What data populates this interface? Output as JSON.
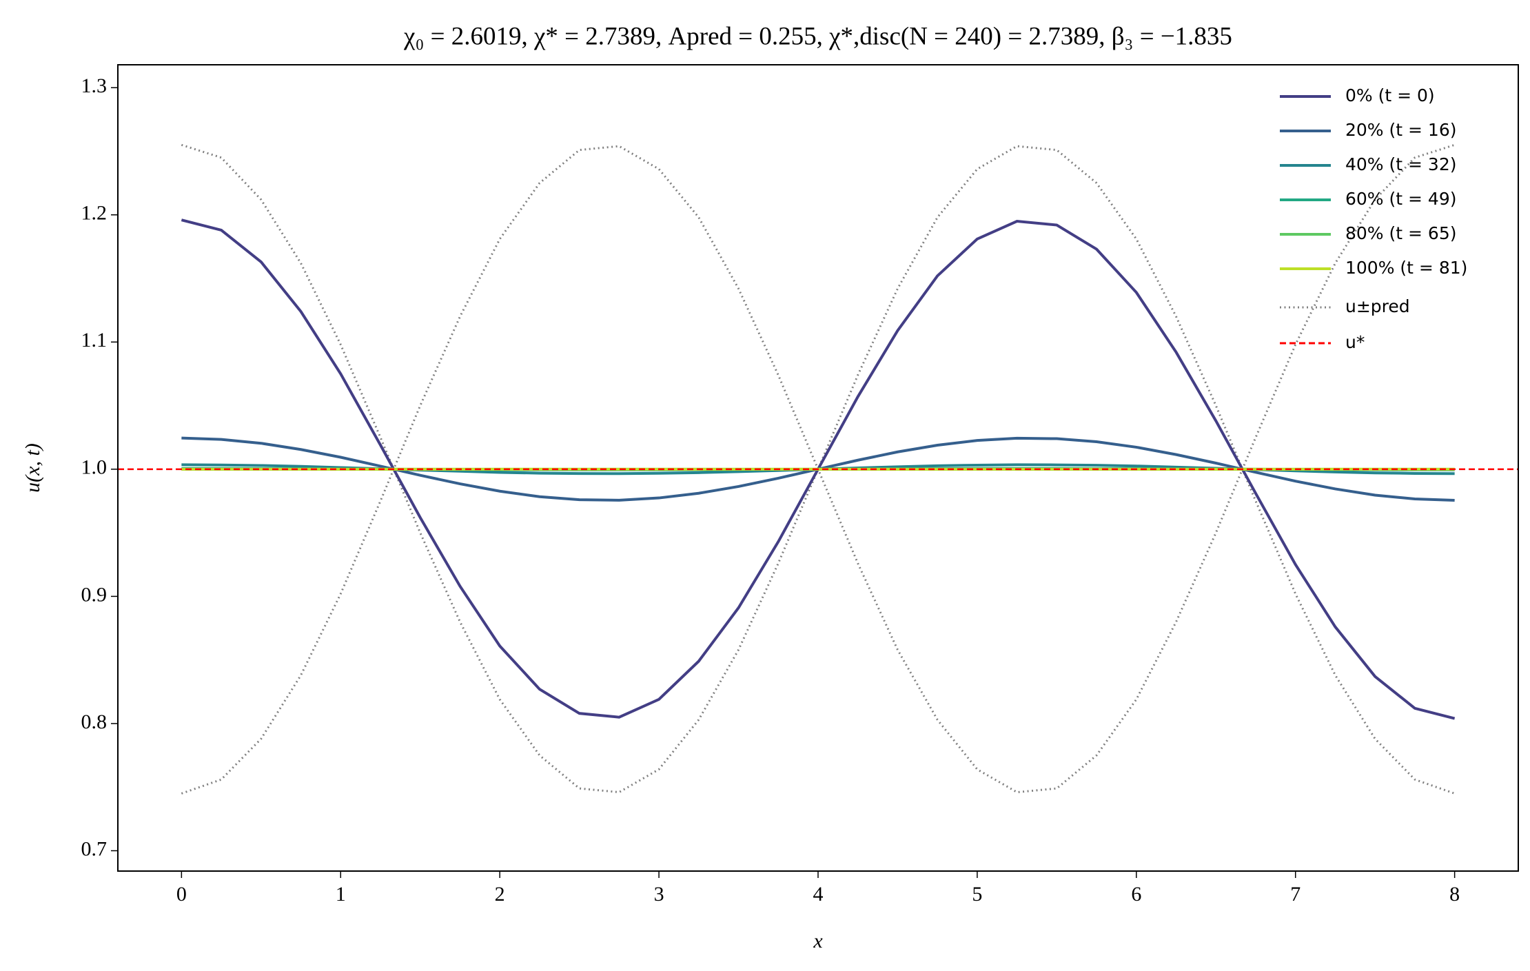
{
  "chart_data": {
    "type": "line",
    "title": "χ₀ = 2.6019,  χ* = 2.7389,  Apred = 0.255,  χ*,disc(N = 240) = 2.7389,  β₃ = −1.835",
    "x_label": "x",
    "y_label": "u(x, t)",
    "x": [
      0,
      0.25,
      0.5,
      0.75,
      1,
      1.25,
      1.5,
      1.75,
      2,
      2.25,
      2.5,
      2.75,
      3,
      3.25,
      3.5,
      3.75,
      4,
      4.25,
      4.5,
      4.75,
      5,
      5.25,
      5.5,
      5.75,
      6,
      6.25,
      6.5,
      6.75,
      7,
      7.25,
      7.5,
      7.75,
      8
    ],
    "series": [
      {
        "name": "0% (t = 0)",
        "color": "#433e85",
        "values": [
          1.196,
          1.188,
          1.163,
          1.124,
          1.075,
          1.019,
          0.962,
          0.908,
          0.861,
          0.827,
          0.808,
          0.805,
          0.819,
          0.849,
          0.891,
          0.943,
          1,
          1.057,
          1.109,
          1.152,
          1.181,
          1.195,
          1.192,
          1.173,
          1.139,
          1.092,
          1.038,
          0.981,
          0.925,
          0.876,
          0.837,
          0.812,
          0.804
        ]
      },
      {
        "name": "20% (t = 16)",
        "color": "#355f8d",
        "values": [
          1.0245,
          1.0234,
          1.0204,
          1.0155,
          1.0094,
          1.0024,
          0.9952,
          0.9885,
          0.9827,
          0.9784,
          0.976,
          0.9756,
          0.9774,
          0.9811,
          0.9864,
          0.9929,
          1,
          1.0071,
          1.0136,
          1.0189,
          1.0226,
          1.0244,
          1.024,
          1.0216,
          1.0173,
          1.0115,
          1.0048,
          0.9976,
          0.9906,
          0.9845,
          0.9796,
          0.9766,
          0.9755
        ]
      },
      {
        "name": "40% (t = 32)",
        "color": "#25858e",
        "values": [
          1.0035,
          1.0033,
          1.0029,
          1.0022,
          1.0013,
          1.0003,
          0.9993,
          0.9984,
          0.9975,
          0.9969,
          0.9966,
          0.9965,
          0.9968,
          0.9973,
          0.9981,
          0.999,
          1,
          1.001,
          1.0019,
          1.0027,
          1.0032,
          1.0035,
          1.0034,
          1.0031,
          1.0025,
          1.0016,
          1.0007,
          0.9997,
          0.9987,
          0.9978,
          0.9971,
          0.9967,
          0.9965
        ]
      },
      {
        "name": "60% (t = 49)",
        "color": "#22a884",
        "values": [
          1.0005,
          1.0005,
          1.0004,
          1.0003,
          1.0002,
          1,
          0.9999,
          0.9998,
          0.9996,
          0.9996,
          0.9995,
          0.9995,
          0.9995,
          0.9996,
          0.9997,
          0.9999,
          1,
          1.0001,
          1.0003,
          1.0004,
          1.0005,
          1.0005,
          1.0005,
          1.0004,
          1.0004,
          1.0002,
          1.0001,
          1,
          0.9998,
          0.9997,
          0.9996,
          0.9995,
          0.9995
        ]
      },
      {
        "name": "80% (t = 65)",
        "color": "#5ec962",
        "values": [
          1,
          1,
          1,
          1,
          1,
          1,
          1,
          1,
          1,
          1,
          1,
          1,
          1,
          1,
          1,
          1,
          1,
          1,
          1,
          1,
          1,
          1,
          1,
          1,
          1,
          1,
          1,
          1,
          1,
          1,
          1,
          1,
          1
        ]
      },
      {
        "name": "100% (t = 81)",
        "color": "#bddf26",
        "values": [
          1,
          1,
          1,
          1,
          1,
          1,
          1,
          1,
          1,
          1,
          1,
          1,
          1,
          1,
          1,
          1,
          1,
          1,
          1,
          1,
          1,
          1,
          1,
          1,
          1,
          1,
          1,
          1,
          1,
          1,
          1,
          1,
          1
        ]
      }
    ],
    "bounds": {
      "name": "u±pred",
      "color": "#808080",
      "upper": [
        1.255,
        1.245,
        1.212,
        1.162,
        1.098,
        1.025,
        0.95,
        0.88,
        0.819,
        0.775,
        0.749,
        0.746,
        0.764,
        0.803,
        0.858,
        0.926,
        1,
        1.074,
        1.142,
        1.198,
        1.236,
        1.254,
        1.251,
        1.225,
        1.181,
        1.12,
        1.05,
        0.975,
        0.902,
        0.838,
        0.788,
        0.756,
        0.745
      ],
      "lower": [
        0.745,
        0.756,
        0.788,
        0.838,
        0.902,
        0.975,
        1.05,
        1.12,
        1.181,
        1.225,
        1.251,
        1.254,
        1.236,
        1.198,
        1.142,
        1.074,
        1,
        0.926,
        0.858,
        0.803,
        0.764,
        0.746,
        0.749,
        0.775,
        0.819,
        0.88,
        0.95,
        1.025,
        1.098,
        1.162,
        1.212,
        1.245,
        1.255
      ]
    },
    "hline": {
      "name": "u*",
      "value": 1,
      "color": "#ff0000"
    },
    "xlim": [
      -0.4,
      8.4
    ],
    "ylim": [
      0.684,
      1.318
    ],
    "xticks": [
      0,
      1,
      2,
      3,
      4,
      5,
      6,
      7,
      8
    ],
    "yticks": [
      0.7,
      0.8,
      0.9,
      {
        "value": 1,
        "label": "1.0"
      },
      1.1,
      1.2,
      1.3
    ],
    "grid": false,
    "legend": "upper right"
  }
}
